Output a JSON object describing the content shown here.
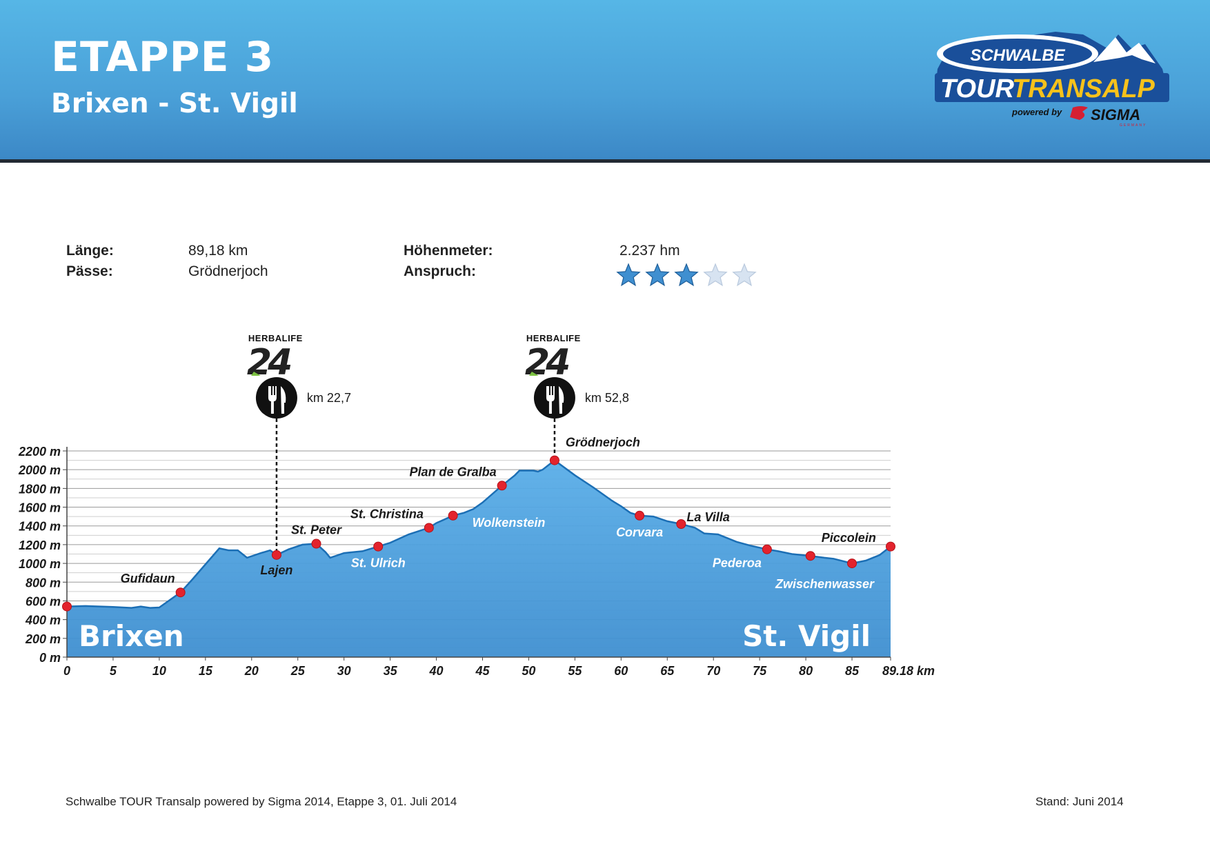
{
  "header": {
    "title": "ETAPPE 3",
    "subtitle": "Brixen - St. Vigil",
    "logo": {
      "top": "SCHWALBE",
      "main_left": "TOUR",
      "main_right": "TRANSALP",
      "powered": "powered by",
      "sponsor": "SIGMA",
      "sponsor_small": "GERMANY"
    }
  },
  "info": {
    "laenge_label": "Länge:",
    "laenge_value": "89,18 km",
    "paesse_label": "Pässe:",
    "paesse_value": "Grödnerjoch",
    "hm_label": "Höhenmeter:",
    "hm_value": "2.237 hm",
    "anspruch_label": "Anspruch:",
    "rating": 3,
    "rating_max": 5
  },
  "feed_stations": [
    {
      "brand": "HERBALIFE",
      "number": "24",
      "label": "km 22,7",
      "km": 22.7,
      "icon": "fork-knife-icon"
    },
    {
      "brand": "HERBALIFE",
      "number": "24",
      "label": "km 52,8",
      "km": 52.8,
      "icon": "fork-knife-icon"
    }
  ],
  "colors": {
    "header": "#4aa0d8",
    "profile_fill": "#3f8fd0",
    "profile_line": "#1c6fb5",
    "marker": "#e3232d",
    "star_filled": "#3f8fd0",
    "star_empty": "#d7e3f1"
  },
  "chart_data": {
    "type": "area",
    "xlabel": "km",
    "ylabel": "",
    "xlim": [
      0,
      89.18
    ],
    "ylim": [
      0,
      2200
    ],
    "x_ticks": [
      "0",
      "5",
      "10",
      "15",
      "20",
      "25",
      "30",
      "35",
      "40",
      "45",
      "50",
      "55",
      "60",
      "65",
      "70",
      "75",
      "80",
      "85",
      "89.18 km"
    ],
    "y_ticks": [
      "0 m",
      "200 m",
      "400 m",
      "600 m",
      "800 m",
      "1000 m",
      "1200 m",
      "1400 m",
      "1600 m",
      "1800 m",
      "2000 m",
      "2200 m"
    ],
    "grid": true,
    "start_label": "Brixen",
    "end_label": "St. Vigil",
    "profile": [
      [
        0,
        540
      ],
      [
        2,
        545
      ],
      [
        5,
        535
      ],
      [
        7,
        525
      ],
      [
        8,
        540
      ],
      [
        9,
        525
      ],
      [
        10,
        530
      ],
      [
        11,
        600
      ],
      [
        12.3,
        690
      ],
      [
        13.5,
        820
      ],
      [
        15,
        990
      ],
      [
        16.5,
        1160
      ],
      [
        17.5,
        1140
      ],
      [
        18.5,
        1140
      ],
      [
        19.5,
        1060
      ],
      [
        21,
        1110
      ],
      [
        22,
        1140
      ],
      [
        22.7,
        1090
      ],
      [
        24,
        1150
      ],
      [
        25.5,
        1200
      ],
      [
        27,
        1210
      ],
      [
        28,
        1120
      ],
      [
        28.5,
        1060
      ],
      [
        30,
        1110
      ],
      [
        32,
        1130
      ],
      [
        33.7,
        1180
      ],
      [
        35,
        1220
      ],
      [
        37,
        1310
      ],
      [
        39.2,
        1380
      ],
      [
        40,
        1430
      ],
      [
        41.8,
        1510
      ],
      [
        43,
        1540
      ],
      [
        44,
        1580
      ],
      [
        45,
        1650
      ],
      [
        47.1,
        1830
      ],
      [
        48.5,
        1940
      ],
      [
        49,
        1990
      ],
      [
        50.5,
        1990
      ],
      [
        51,
        1980
      ],
      [
        51.5,
        2000
      ],
      [
        52.8,
        2100
      ],
      [
        55,
        1940
      ],
      [
        57,
        1810
      ],
      [
        59,
        1670
      ],
      [
        60,
        1610
      ],
      [
        61,
        1540
      ],
      [
        62,
        1510
      ],
      [
        63.5,
        1500
      ],
      [
        65,
        1450
      ],
      [
        66.5,
        1420
      ],
      [
        68,
        1380
      ],
      [
        69,
        1320
      ],
      [
        70.5,
        1310
      ],
      [
        72.5,
        1230
      ],
      [
        74,
        1190
      ],
      [
        75.8,
        1150
      ],
      [
        77,
        1130
      ],
      [
        78.5,
        1100
      ],
      [
        80.5,
        1080
      ],
      [
        82,
        1060
      ],
      [
        83,
        1050
      ],
      [
        85,
        1000
      ],
      [
        86.5,
        1030
      ],
      [
        88,
        1090
      ],
      [
        89.18,
        1180
      ]
    ],
    "waypoints": [
      {
        "name": "Brixen",
        "km": 0,
        "elev": 540,
        "label": ""
      },
      {
        "name": "Gufidaun",
        "km": 12.3,
        "elev": 690,
        "label": "Gufidaun",
        "pos": "above-left"
      },
      {
        "name": "Lajen",
        "km": 22.7,
        "elev": 1090,
        "label": "Lajen",
        "pos": "below"
      },
      {
        "name": "St. Peter",
        "km": 27,
        "elev": 1210,
        "label": "St. Peter",
        "pos": "above"
      },
      {
        "name": "St. Ulrich",
        "km": 33.7,
        "elev": 1180,
        "label": "St. Ulrich",
        "pos": "below-white"
      },
      {
        "name": "St. Christina",
        "km": 39.2,
        "elev": 1380,
        "label": "St. Christina",
        "pos": "above-left"
      },
      {
        "name": "Wolkenstein",
        "km": 41.8,
        "elev": 1510,
        "label": "Wolkenstein",
        "pos": "below-right-white"
      },
      {
        "name": "Plan de Gralba",
        "km": 47.1,
        "elev": 1830,
        "label": "Plan de Gralba",
        "pos": "above-left"
      },
      {
        "name": "Grödnerjoch",
        "km": 52.8,
        "elev": 2100,
        "label": "Grödnerjoch",
        "pos": "above-right"
      },
      {
        "name": "Corvara",
        "km": 62,
        "elev": 1510,
        "label": "Corvara",
        "pos": "below-white"
      },
      {
        "name": "La Villa",
        "km": 66.5,
        "elev": 1420,
        "label": "La Villa",
        "pos": "right"
      },
      {
        "name": "Pederoa",
        "km": 75.8,
        "elev": 1150,
        "label": "Pederoa",
        "pos": "below-left-white"
      },
      {
        "name": "Piccolein",
        "km": 80.5,
        "elev": 1080,
        "label": "Piccolein",
        "pos": "above-right"
      },
      {
        "name": "Zwischenwasser",
        "km": 85,
        "elev": 1000,
        "label": "Zwischenwasser",
        "pos": "below-left-white"
      },
      {
        "name": "St. Vigil",
        "km": 89.18,
        "elev": 1180,
        "label": ""
      }
    ]
  },
  "footer": {
    "left": "Schwalbe TOUR Transalp powered by Sigma 2014, Etappe 3, 01. Juli 2014",
    "right": "Stand: Juni 2014"
  }
}
